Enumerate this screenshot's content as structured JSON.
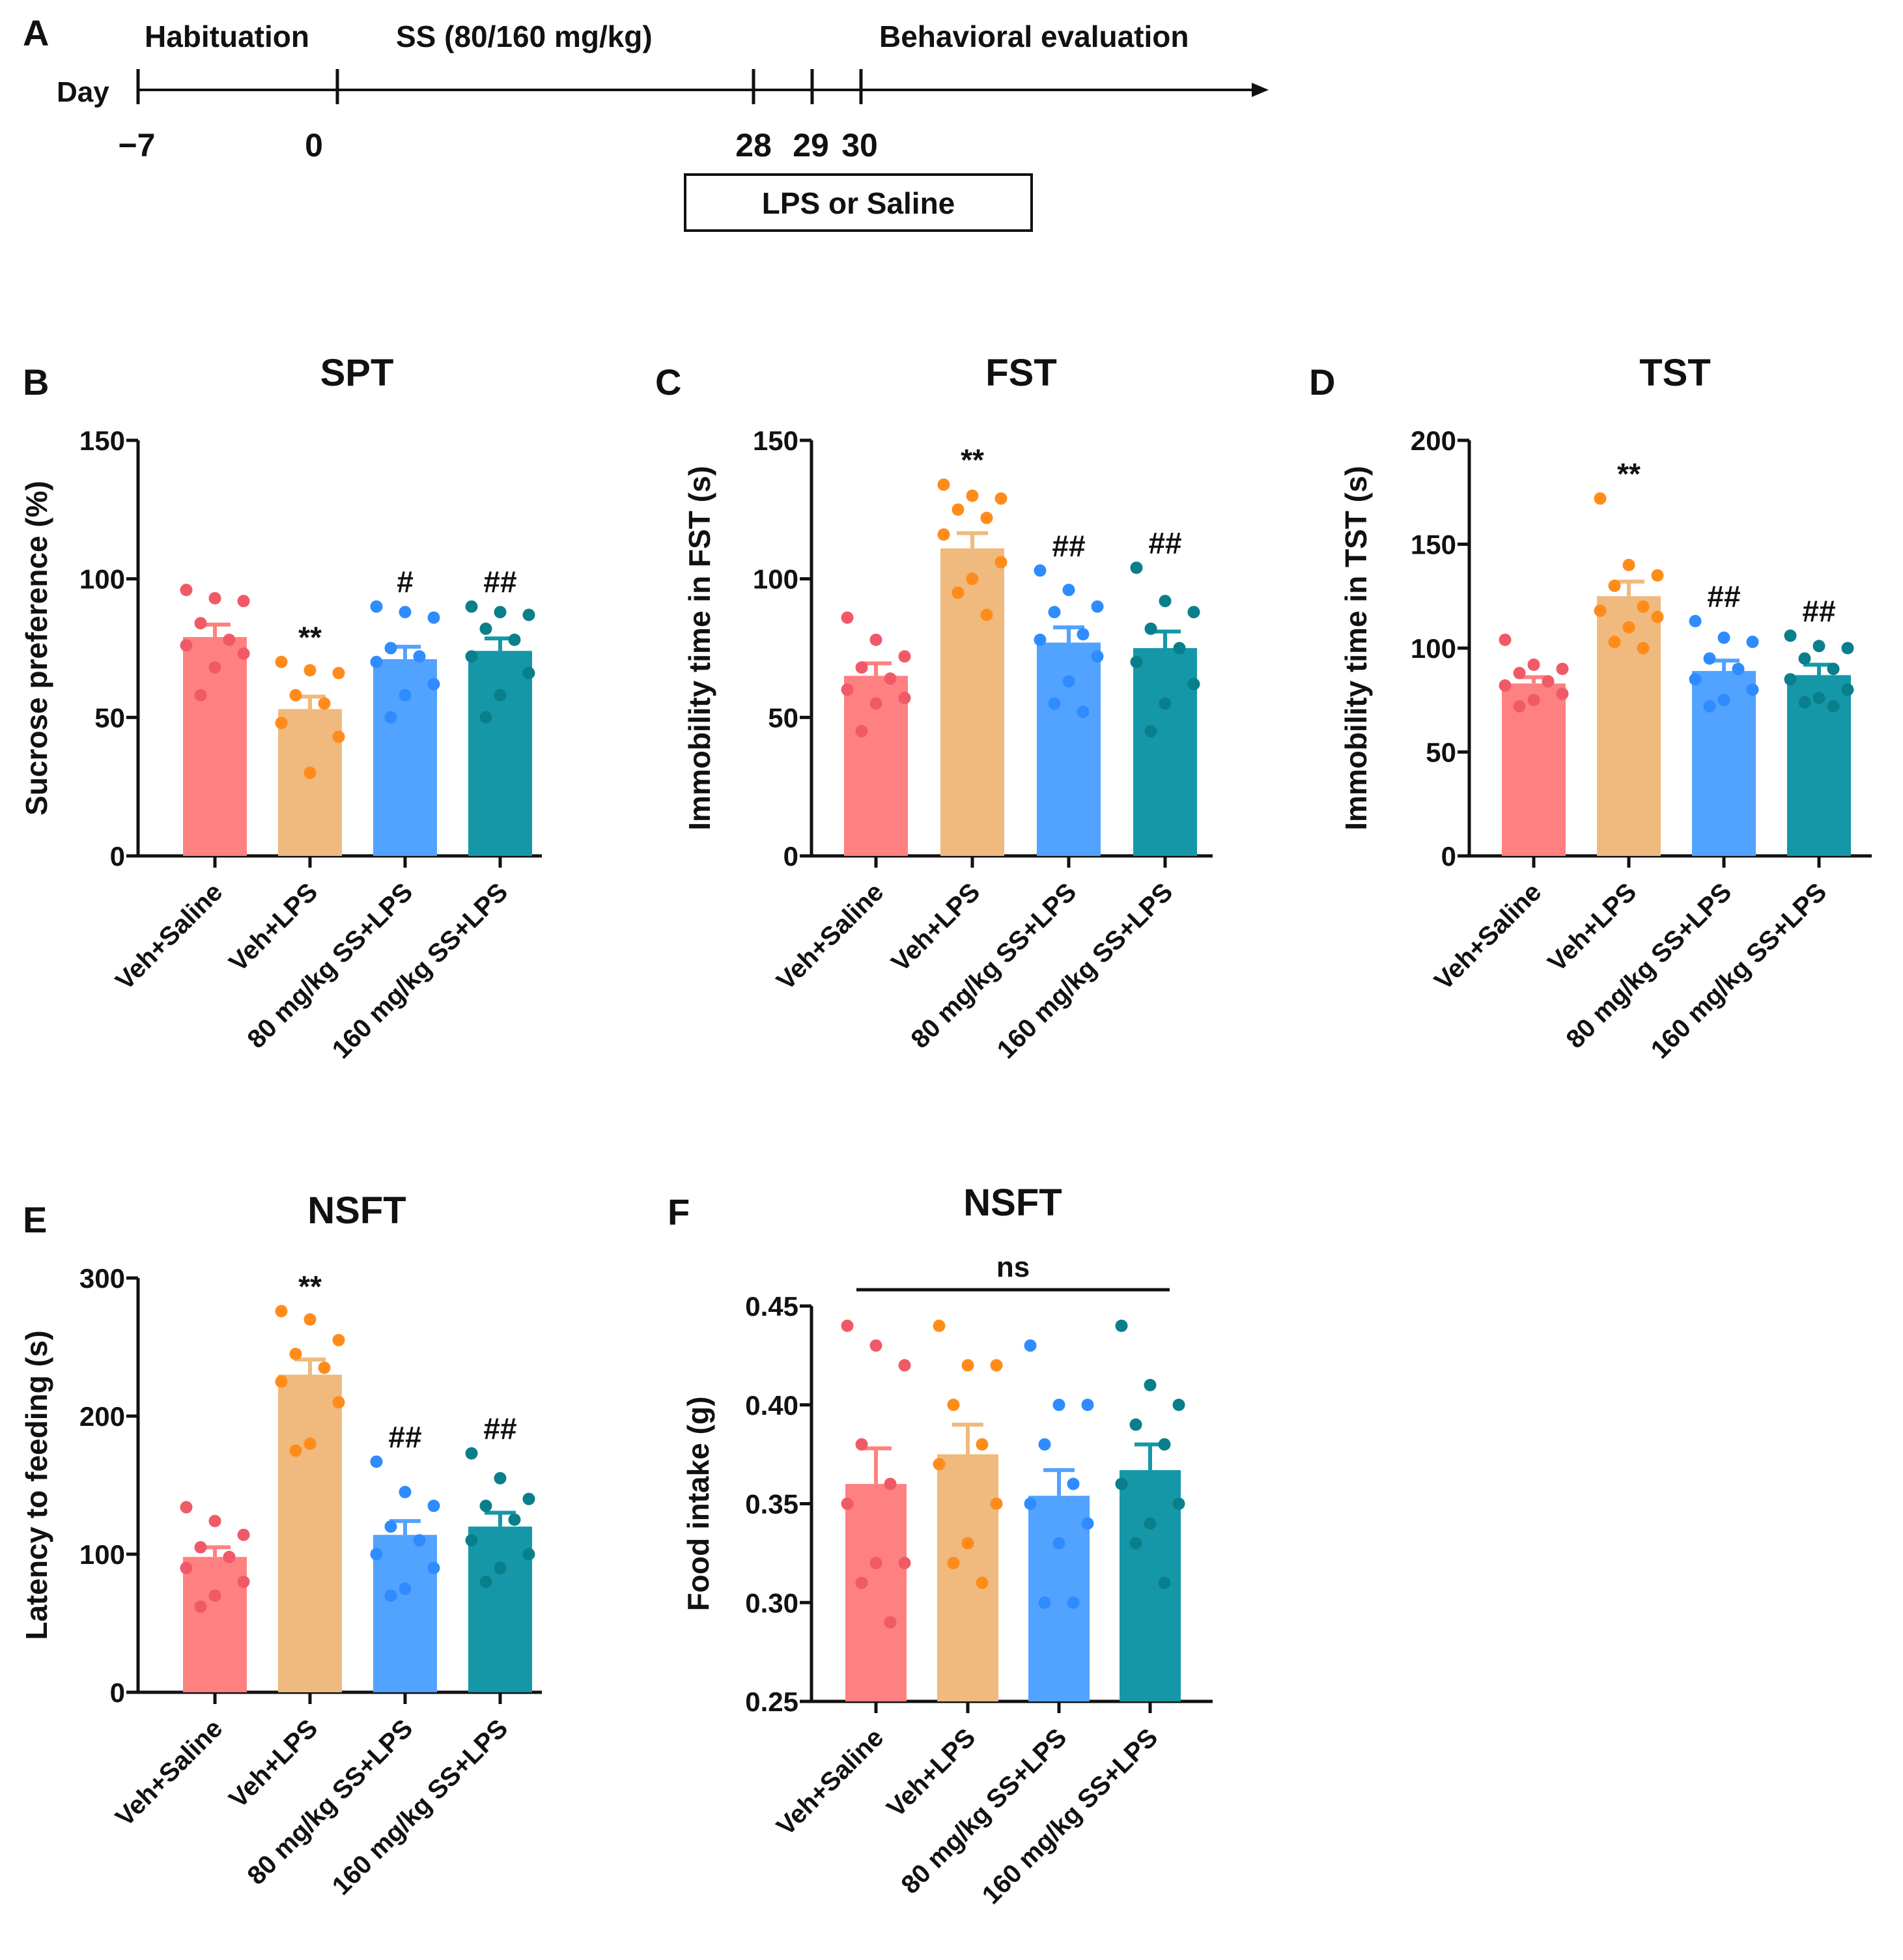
{
  "colors": {
    "ink": "#111111",
    "bar_fill": [
      "#ff8080",
      "#f0b97d",
      "#52a2ff",
      "#1597a8"
    ],
    "dot_fill": [
      "#f05a68",
      "#ff8c1a",
      "#2e8cff",
      "#0a7f8c"
    ]
  },
  "timeline": {
    "panel": "A",
    "day_label": "Day",
    "phase_labels": [
      "Habituation",
      "SS (80/160 mg/kg)",
      "Behavioral evaluation"
    ],
    "ticks": [
      -7,
      0,
      28,
      29,
      30
    ],
    "tick_labels": [
      "−7",
      "0",
      "28",
      "29",
      "30"
    ],
    "box_label": "LPS or Saline"
  },
  "chart_data": [
    {
      "panel": "B",
      "type": "bar",
      "title": "SPT",
      "ylabel": "Sucrose preference (%)",
      "xlabel": "",
      "ylim": [
        0,
        150
      ],
      "yticks": [
        0,
        50,
        100,
        150
      ],
      "categories": [
        "Veh+Saline",
        "Veh+LPS",
        "80 mg/kg SS+LPS",
        "160 mg/kg SS+LPS"
      ],
      "means": [
        79,
        53,
        71,
        74
      ],
      "sem": [
        4.5,
        4.5,
        4.5,
        4.5
      ],
      "points": [
        [
          96,
          93,
          92,
          84,
          78,
          76,
          73,
          68,
          58
        ],
        [
          70,
          67,
          66,
          58,
          55,
          48,
          43,
          30
        ],
        [
          90,
          88,
          86,
          75,
          72,
          70,
          62,
          58,
          50
        ],
        [
          90,
          88,
          87,
          82,
          78,
          72,
          66,
          58,
          50
        ]
      ],
      "significance": [
        "",
        "**",
        "#",
        "##"
      ]
    },
    {
      "panel": "C",
      "type": "bar",
      "title": "FST",
      "ylabel": "Immobility time in FST (s)",
      "xlabel": "",
      "ylim": [
        0,
        150
      ],
      "yticks": [
        0,
        50,
        100,
        150
      ],
      "categories": [
        "Veh+Saline",
        "Veh+LPS",
        "80 mg/kg SS+LPS",
        "160 mg/kg SS+LPS"
      ],
      "means": [
        65,
        111,
        77,
        75
      ],
      "sem": [
        4.5,
        5.5,
        5.5,
        6
      ],
      "points": [
        [
          86,
          78,
          72,
          68,
          64,
          60,
          57,
          55,
          45
        ],
        [
          134,
          130,
          129,
          125,
          122,
          116,
          106,
          100,
          95,
          87
        ],
        [
          103,
          96,
          90,
          88,
          80,
          78,
          72,
          63,
          55,
          52
        ],
        [
          104,
          92,
          88,
          82,
          75,
          70,
          62,
          55,
          45
        ]
      ],
      "significance": [
        "",
        "**",
        "##",
        "##"
      ]
    },
    {
      "panel": "D",
      "type": "bar",
      "title": "TST",
      "ylabel": "Immobility time in TST (s)",
      "xlabel": "",
      "ylim": [
        0,
        200
      ],
      "yticks": [
        0,
        50,
        100,
        150,
        200
      ],
      "categories": [
        "Veh+Saline",
        "Veh+LPS",
        "80 mg/kg SS+LPS",
        "160 mg/kg SS+LPS"
      ],
      "means": [
        83,
        125,
        89,
        87
      ],
      "sem": [
        3,
        7,
        5,
        5
      ],
      "points": [
        [
          104,
          92,
          90,
          88,
          84,
          82,
          78,
          75,
          72
        ],
        [
          172,
          140,
          135,
          130,
          120,
          118,
          115,
          110,
          103,
          100
        ],
        [
          113,
          105,
          103,
          95,
          90,
          85,
          80,
          75,
          72
        ],
        [
          106,
          101,
          100,
          95,
          90,
          85,
          80,
          76,
          74,
          72
        ]
      ],
      "significance": [
        "",
        "**",
        "##",
        "##"
      ]
    },
    {
      "panel": "E",
      "type": "bar",
      "title": "NSFT",
      "ylabel": "Latency to feeding (s)",
      "xlabel": "",
      "ylim": [
        0,
        300
      ],
      "yticks": [
        0,
        100,
        200,
        300
      ],
      "categories": [
        "Veh+Saline",
        "Veh+LPS",
        "80 mg/kg SS+LPS",
        "160 mg/kg SS+LPS"
      ],
      "means": [
        98,
        230,
        114,
        120
      ],
      "sem": [
        7,
        11,
        10,
        10
      ],
      "points": [
        [
          134,
          124,
          114,
          105,
          98,
          90,
          80,
          70,
          62
        ],
        [
          276,
          270,
          255,
          245,
          235,
          225,
          210,
          180,
          175
        ],
        [
          167,
          145,
          135,
          120,
          110,
          100,
          90,
          75,
          70
        ],
        [
          173,
          155,
          140,
          135,
          125,
          110,
          100,
          90,
          80
        ]
      ],
      "significance": [
        "",
        "**",
        "##",
        "##"
      ]
    },
    {
      "panel": "F",
      "type": "bar",
      "title": "NSFT",
      "ylabel": "Food intake (g)",
      "xlabel": "",
      "ylim": [
        0.25,
        0.45
      ],
      "yticks": [
        0.25,
        0.3,
        0.35,
        0.4,
        0.45
      ],
      "ytick_labels": [
        "0.25",
        "0.30",
        "0.35",
        "0.40",
        "0.45"
      ],
      "categories": [
        "Veh+Saline",
        "Veh+LPS",
        "80 mg/kg SS+LPS",
        "160 mg/kg SS+LPS"
      ],
      "means": [
        0.36,
        0.375,
        0.354,
        0.367
      ],
      "sem": [
        0.018,
        0.015,
        0.013,
        0.013
      ],
      "points": [
        [
          0.44,
          0.43,
          0.42,
          0.38,
          0.36,
          0.35,
          0.32,
          0.32,
          0.31,
          0.29
        ],
        [
          0.44,
          0.42,
          0.42,
          0.4,
          0.38,
          0.37,
          0.35,
          0.33,
          0.32,
          0.31
        ],
        [
          0.43,
          0.4,
          0.4,
          0.38,
          0.36,
          0.35,
          0.34,
          0.33,
          0.3,
          0.3
        ],
        [
          0.44,
          0.41,
          0.4,
          0.39,
          0.38,
          0.36,
          0.35,
          0.34,
          0.33,
          0.31
        ]
      ],
      "significance": [
        "",
        "",
        "",
        ""
      ],
      "bracket_label": "ns"
    }
  ]
}
